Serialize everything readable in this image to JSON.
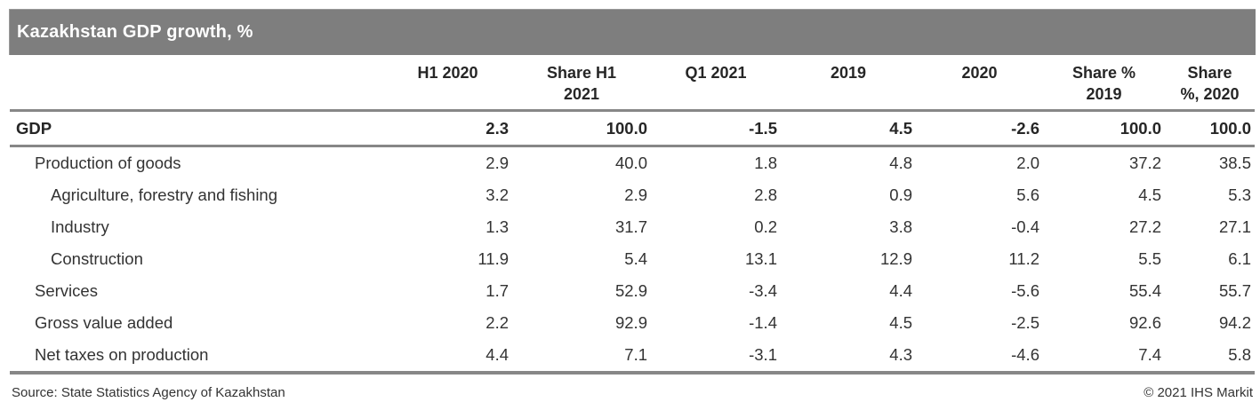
{
  "title_bar": {
    "title": "Kazakhstan GDP growth, %"
  },
  "chart_data": {
    "type": "table",
    "title": "Kazakhstan GDP growth, %",
    "unit": "%",
    "columns": [
      "H1 2020",
      "Share H1 2021",
      "Q1 2021",
      "2019",
      "2020",
      "Share % 2019",
      "Share %, 2020"
    ],
    "header_lines": [
      [
        "H1 2020",
        ""
      ],
      [
        "Share H1",
        "2021"
      ],
      [
        "Q1 2021",
        ""
      ],
      [
        "2019",
        ""
      ],
      [
        "2020",
        ""
      ],
      [
        "Share %",
        "2019"
      ],
      [
        "Share",
        "%, 2020"
      ]
    ],
    "rows": [
      {
        "label": "GDP",
        "indent": 0,
        "bold": true,
        "values": [
          "2.3",
          "100.0",
          "-1.5",
          "4.5",
          "-2.6",
          "100.0",
          "100.0"
        ]
      },
      {
        "label": "Production of goods",
        "indent": 1,
        "bold": false,
        "values": [
          "2.9",
          "40.0",
          "1.8",
          "4.8",
          "2.0",
          "37.2",
          "38.5"
        ]
      },
      {
        "label": "Agriculture, forestry and fishing",
        "indent": 2,
        "bold": false,
        "values": [
          "3.2",
          "2.9",
          "2.8",
          "0.9",
          "5.6",
          "4.5",
          "5.3"
        ]
      },
      {
        "label": "Industry",
        "indent": 2,
        "bold": false,
        "values": [
          "1.3",
          "31.7",
          "0.2",
          "3.8",
          "-0.4",
          "27.2",
          "27.1"
        ]
      },
      {
        "label": "Construction",
        "indent": 2,
        "bold": false,
        "values": [
          "11.9",
          "5.4",
          "13.1",
          "12.9",
          "11.2",
          "5.5",
          "6.1"
        ]
      },
      {
        "label": "Services",
        "indent": 1,
        "bold": false,
        "values": [
          "1.7",
          "52.9",
          "-3.4",
          "4.4",
          "-5.6",
          "55.4",
          "55.7"
        ]
      },
      {
        "label": "Gross value added",
        "indent": 1,
        "bold": false,
        "values": [
          "2.2",
          "92.9",
          "-1.4",
          "4.5",
          "-2.5",
          "92.6",
          "94.2"
        ]
      },
      {
        "label": "Net taxes on production",
        "indent": 1,
        "bold": false,
        "values": [
          "4.4",
          "7.1",
          "-3.1",
          "4.3",
          "-4.6",
          "7.4",
          "5.8"
        ]
      }
    ]
  },
  "footer": {
    "source": "Source: State Statistics Agency of Kazakhstan",
    "copyright": "© 2021 IHS Markit"
  },
  "colors": {
    "title_bar_bg": "#7e7e7e",
    "title_text": "#ffffff",
    "rule_gray": "#878787",
    "body_text": "#333333"
  }
}
